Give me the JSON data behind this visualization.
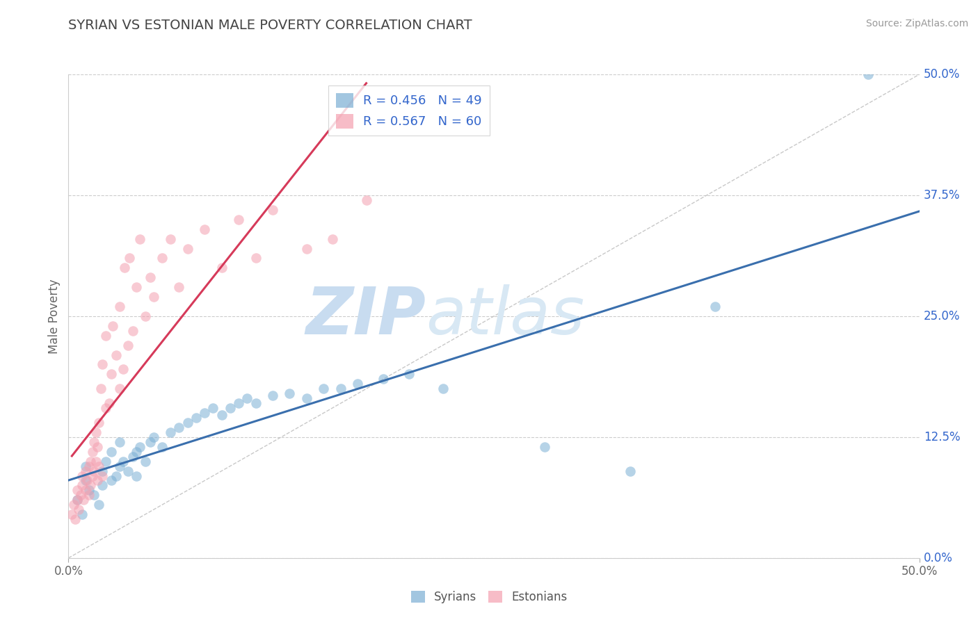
{
  "title": "SYRIAN VS ESTONIAN MALE POVERTY CORRELATION CHART",
  "source": "Source: ZipAtlas.com",
  "ylabel": "Male Poverty",
  "xlim": [
    0.0,
    0.5
  ],
  "ylim": [
    0.0,
    0.5
  ],
  "yticks_right": [
    0.0,
    0.125,
    0.25,
    0.375,
    0.5
  ],
  "ytick_labels_right": [
    "0.0%",
    "12.5%",
    "25.0%",
    "37.5%",
    "50.0%"
  ],
  "syrian_R": 0.456,
  "syrian_N": 49,
  "estonian_R": 0.567,
  "estonian_N": 60,
  "syrian_color": "#7bafd4",
  "estonian_color": "#f4a0b0",
  "syrian_line_color": "#3a6fad",
  "estonian_line_color": "#d63a5a",
  "watermark_color": "#ddeeff",
  "watermark_text": "ZIPatlas",
  "background_color": "#ffffff",
  "grid_color": "#cccccc",
  "title_color": "#444444",
  "legend_text_color": "#3366cc",
  "syrians_label": "Syrians",
  "estonians_label": "Estonians",
  "syrian_scatter_x": [
    0.005,
    0.008,
    0.01,
    0.01,
    0.012,
    0.015,
    0.018,
    0.02,
    0.02,
    0.022,
    0.025,
    0.025,
    0.028,
    0.03,
    0.03,
    0.032,
    0.035,
    0.038,
    0.04,
    0.04,
    0.042,
    0.045,
    0.048,
    0.05,
    0.055,
    0.06,
    0.065,
    0.07,
    0.075,
    0.08,
    0.085,
    0.09,
    0.095,
    0.1,
    0.105,
    0.11,
    0.12,
    0.13,
    0.14,
    0.15,
    0.16,
    0.17,
    0.185,
    0.2,
    0.22,
    0.28,
    0.33,
    0.38,
    0.47
  ],
  "syrian_scatter_y": [
    0.06,
    0.045,
    0.08,
    0.095,
    0.07,
    0.065,
    0.055,
    0.075,
    0.09,
    0.1,
    0.08,
    0.11,
    0.085,
    0.095,
    0.12,
    0.1,
    0.09,
    0.105,
    0.085,
    0.11,
    0.115,
    0.1,
    0.12,
    0.125,
    0.115,
    0.13,
    0.135,
    0.14,
    0.145,
    0.15,
    0.155,
    0.148,
    0.155,
    0.16,
    0.165,
    0.16,
    0.168,
    0.17,
    0.165,
    0.175,
    0.175,
    0.18,
    0.185,
    0.19,
    0.175,
    0.115,
    0.09,
    0.26,
    0.5
  ],
  "estonian_scatter_x": [
    0.002,
    0.003,
    0.004,
    0.005,
    0.005,
    0.006,
    0.007,
    0.008,
    0.008,
    0.009,
    0.01,
    0.01,
    0.011,
    0.012,
    0.012,
    0.013,
    0.013,
    0.014,
    0.014,
    0.015,
    0.015,
    0.016,
    0.016,
    0.017,
    0.017,
    0.018,
    0.018,
    0.019,
    0.02,
    0.02,
    0.022,
    0.022,
    0.024,
    0.025,
    0.026,
    0.028,
    0.03,
    0.03,
    0.032,
    0.033,
    0.035,
    0.036,
    0.038,
    0.04,
    0.042,
    0.045,
    0.048,
    0.05,
    0.055,
    0.06,
    0.065,
    0.07,
    0.08,
    0.09,
    0.1,
    0.11,
    0.12,
    0.14,
    0.155,
    0.175
  ],
  "estonian_scatter_y": [
    0.045,
    0.055,
    0.04,
    0.06,
    0.07,
    0.05,
    0.065,
    0.075,
    0.085,
    0.06,
    0.07,
    0.09,
    0.08,
    0.065,
    0.095,
    0.075,
    0.1,
    0.085,
    0.11,
    0.09,
    0.12,
    0.1,
    0.13,
    0.08,
    0.115,
    0.095,
    0.14,
    0.175,
    0.085,
    0.2,
    0.155,
    0.23,
    0.16,
    0.19,
    0.24,
    0.21,
    0.175,
    0.26,
    0.195,
    0.3,
    0.22,
    0.31,
    0.235,
    0.28,
    0.33,
    0.25,
    0.29,
    0.27,
    0.31,
    0.33,
    0.28,
    0.32,
    0.34,
    0.3,
    0.35,
    0.31,
    0.36,
    0.32,
    0.33,
    0.37
  ]
}
